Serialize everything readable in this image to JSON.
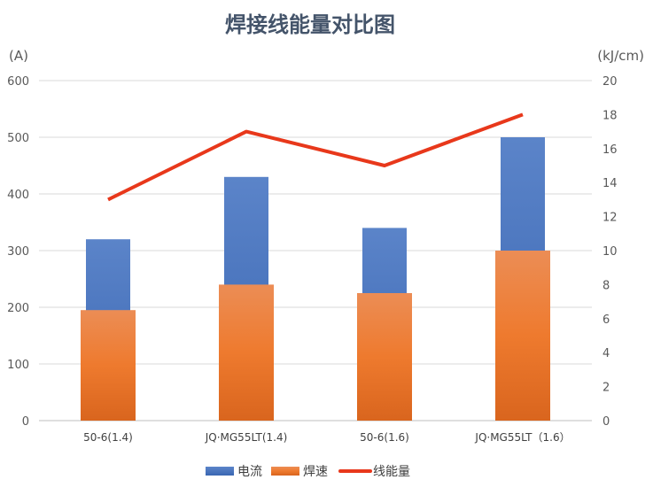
{
  "chart_data": {
    "type": "bar",
    "title": "焊接线能量对比图",
    "ylabel_left": "(A)",
    "ylabel_right": "(kJ/cm)",
    "ylim_left": [
      0,
      600
    ],
    "ylim_right": [
      0,
      20
    ],
    "yticks_left": [
      0,
      100,
      200,
      300,
      400,
      500,
      600
    ],
    "yticks_right": [
      0,
      2,
      4,
      6,
      8,
      10,
      12,
      14,
      16,
      18,
      20
    ],
    "grid": true,
    "legend_position": "bottom",
    "categories": [
      "50-6(1.4)",
      "JQ·MG55LT(1.4)",
      "50-6(1.6)",
      "JQ·MG55LT（1.6）"
    ],
    "series": [
      {
        "name": "电流",
        "type": "bar",
        "axis": "left",
        "color": "#4472c4",
        "values": [
          320,
          430,
          340,
          500
        ]
      },
      {
        "name": "焊速",
        "type": "bar",
        "axis": "left",
        "color": "#ed7d31",
        "values": [
          195,
          240,
          225,
          300
        ]
      },
      {
        "name": "线能量",
        "type": "line",
        "axis": "right",
        "color": "#e8381b",
        "values": [
          13,
          17,
          15,
          18
        ]
      }
    ]
  }
}
